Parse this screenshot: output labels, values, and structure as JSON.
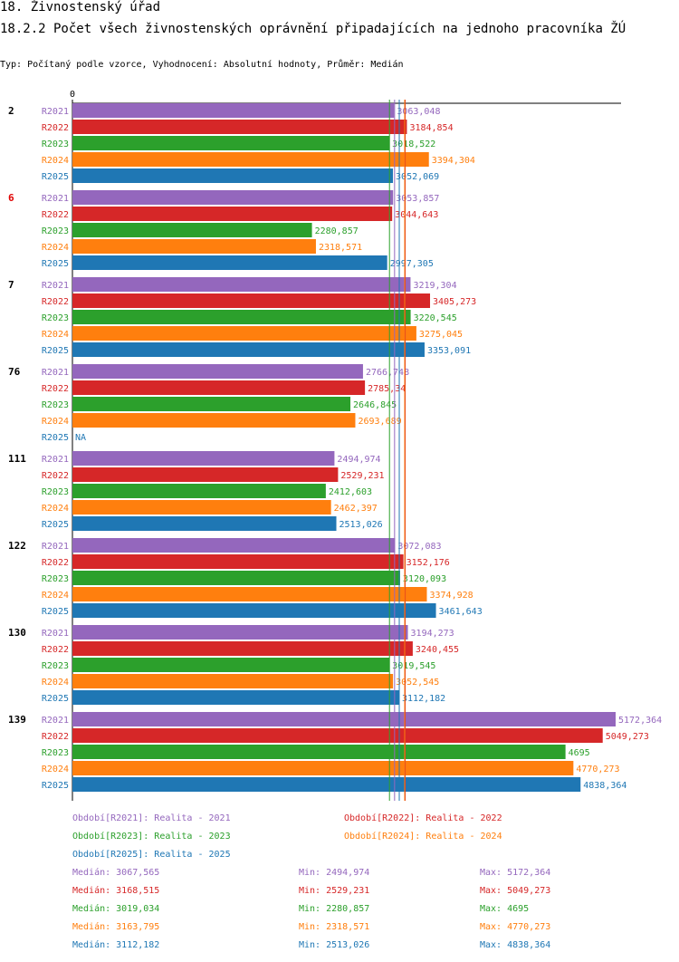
{
  "header": {
    "section": "18. Živnostenský úřad",
    "title": "18.2.2 Počet všech živnostenských oprávnění připadajících na jednoho pracovníka ŽÚ",
    "subtitle": "Typ: Počítaný podle vzorce, Vyhodnocení: Absolutní hodnoty, Průměr: Medián"
  },
  "colors": {
    "R2021": "#9467bd",
    "R2022": "#d62728",
    "R2023": "#2ca02c",
    "R2024": "#ff7f0e",
    "R2025": "#1f77b4",
    "highlight": "#e00000",
    "text": "#000000"
  },
  "chart_data": {
    "type": "bar",
    "orientation": "horizontal",
    "axis_zero_label": "0",
    "xlim": [
      0,
      5172.364
    ],
    "series_names": [
      "R2021",
      "R2022",
      "R2023",
      "R2024",
      "R2025"
    ],
    "categories": [
      {
        "label": "2",
        "highlight": false,
        "values": [
          "3063,048",
          "3184,854",
          "3018,522",
          "3394,304",
          "3052,069"
        ]
      },
      {
        "label": "6",
        "highlight": true,
        "values": [
          "3053,857",
          "3044,643",
          "2280,857",
          "2318,571",
          "2997,305"
        ]
      },
      {
        "label": "7",
        "highlight": false,
        "values": [
          "3219,304",
          "3405,273",
          "3220,545",
          "3275,045",
          "3353,091"
        ]
      },
      {
        "label": "76",
        "highlight": false,
        "values": [
          "2766,748",
          "2785,34",
          "2646,845",
          "2693,689",
          "NA"
        ]
      },
      {
        "label": "111",
        "highlight": false,
        "values": [
          "2494,974",
          "2529,231",
          "2412,603",
          "2462,397",
          "2513,026"
        ]
      },
      {
        "label": "122",
        "highlight": false,
        "values": [
          "3072,083",
          "3152,176",
          "3120,093",
          "3374,928",
          "3461,643"
        ]
      },
      {
        "label": "130",
        "highlight": false,
        "values": [
          "3194,273",
          "3240,455",
          "3019,545",
          "3052,545",
          "3112,182"
        ]
      },
      {
        "label": "139",
        "highlight": false,
        "values": [
          "5172,364",
          "5049,273",
          "4695",
          "4770,273",
          "4838,364"
        ]
      }
    ],
    "median_lines": [
      {
        "series": "R2021",
        "value": 3067.565
      },
      {
        "series": "R2022",
        "value": 3168.515
      },
      {
        "series": "R2023",
        "value": 3019.034
      },
      {
        "series": "R2024",
        "value": 3163.795
      },
      {
        "series": "R2025",
        "value": 3112.182
      }
    ]
  },
  "legend": {
    "periods": [
      {
        "series": "R2021",
        "text": "Období[R2021]: Realita - 2021"
      },
      {
        "series": "R2022",
        "text": "Období[R2022]: Realita - 2022"
      },
      {
        "series": "R2023",
        "text": "Období[R2023]: Realita - 2023"
      },
      {
        "series": "R2024",
        "text": "Období[R2024]: Realita - 2024"
      },
      {
        "series": "R2025",
        "text": "Období[R2025]: Realita - 2025"
      }
    ],
    "stats": [
      {
        "series": "R2021",
        "median": "Medián: 3067,565",
        "min": "Min: 2494,974",
        "max": "Max: 5172,364"
      },
      {
        "series": "R2022",
        "median": "Medián: 3168,515",
        "min": "Min: 2529,231",
        "max": "Max: 5049,273"
      },
      {
        "series": "R2023",
        "median": "Medián: 3019,034",
        "min": "Min: 2280,857",
        "max": "Max: 4695"
      },
      {
        "series": "R2024",
        "median": "Medián: 3163,795",
        "min": "Min: 2318,571",
        "max": "Max: 4770,273"
      },
      {
        "series": "R2025",
        "median": "Medián: 3112,182",
        "min": "Min: 2513,026",
        "max": "Max: 4838,364"
      }
    ]
  }
}
